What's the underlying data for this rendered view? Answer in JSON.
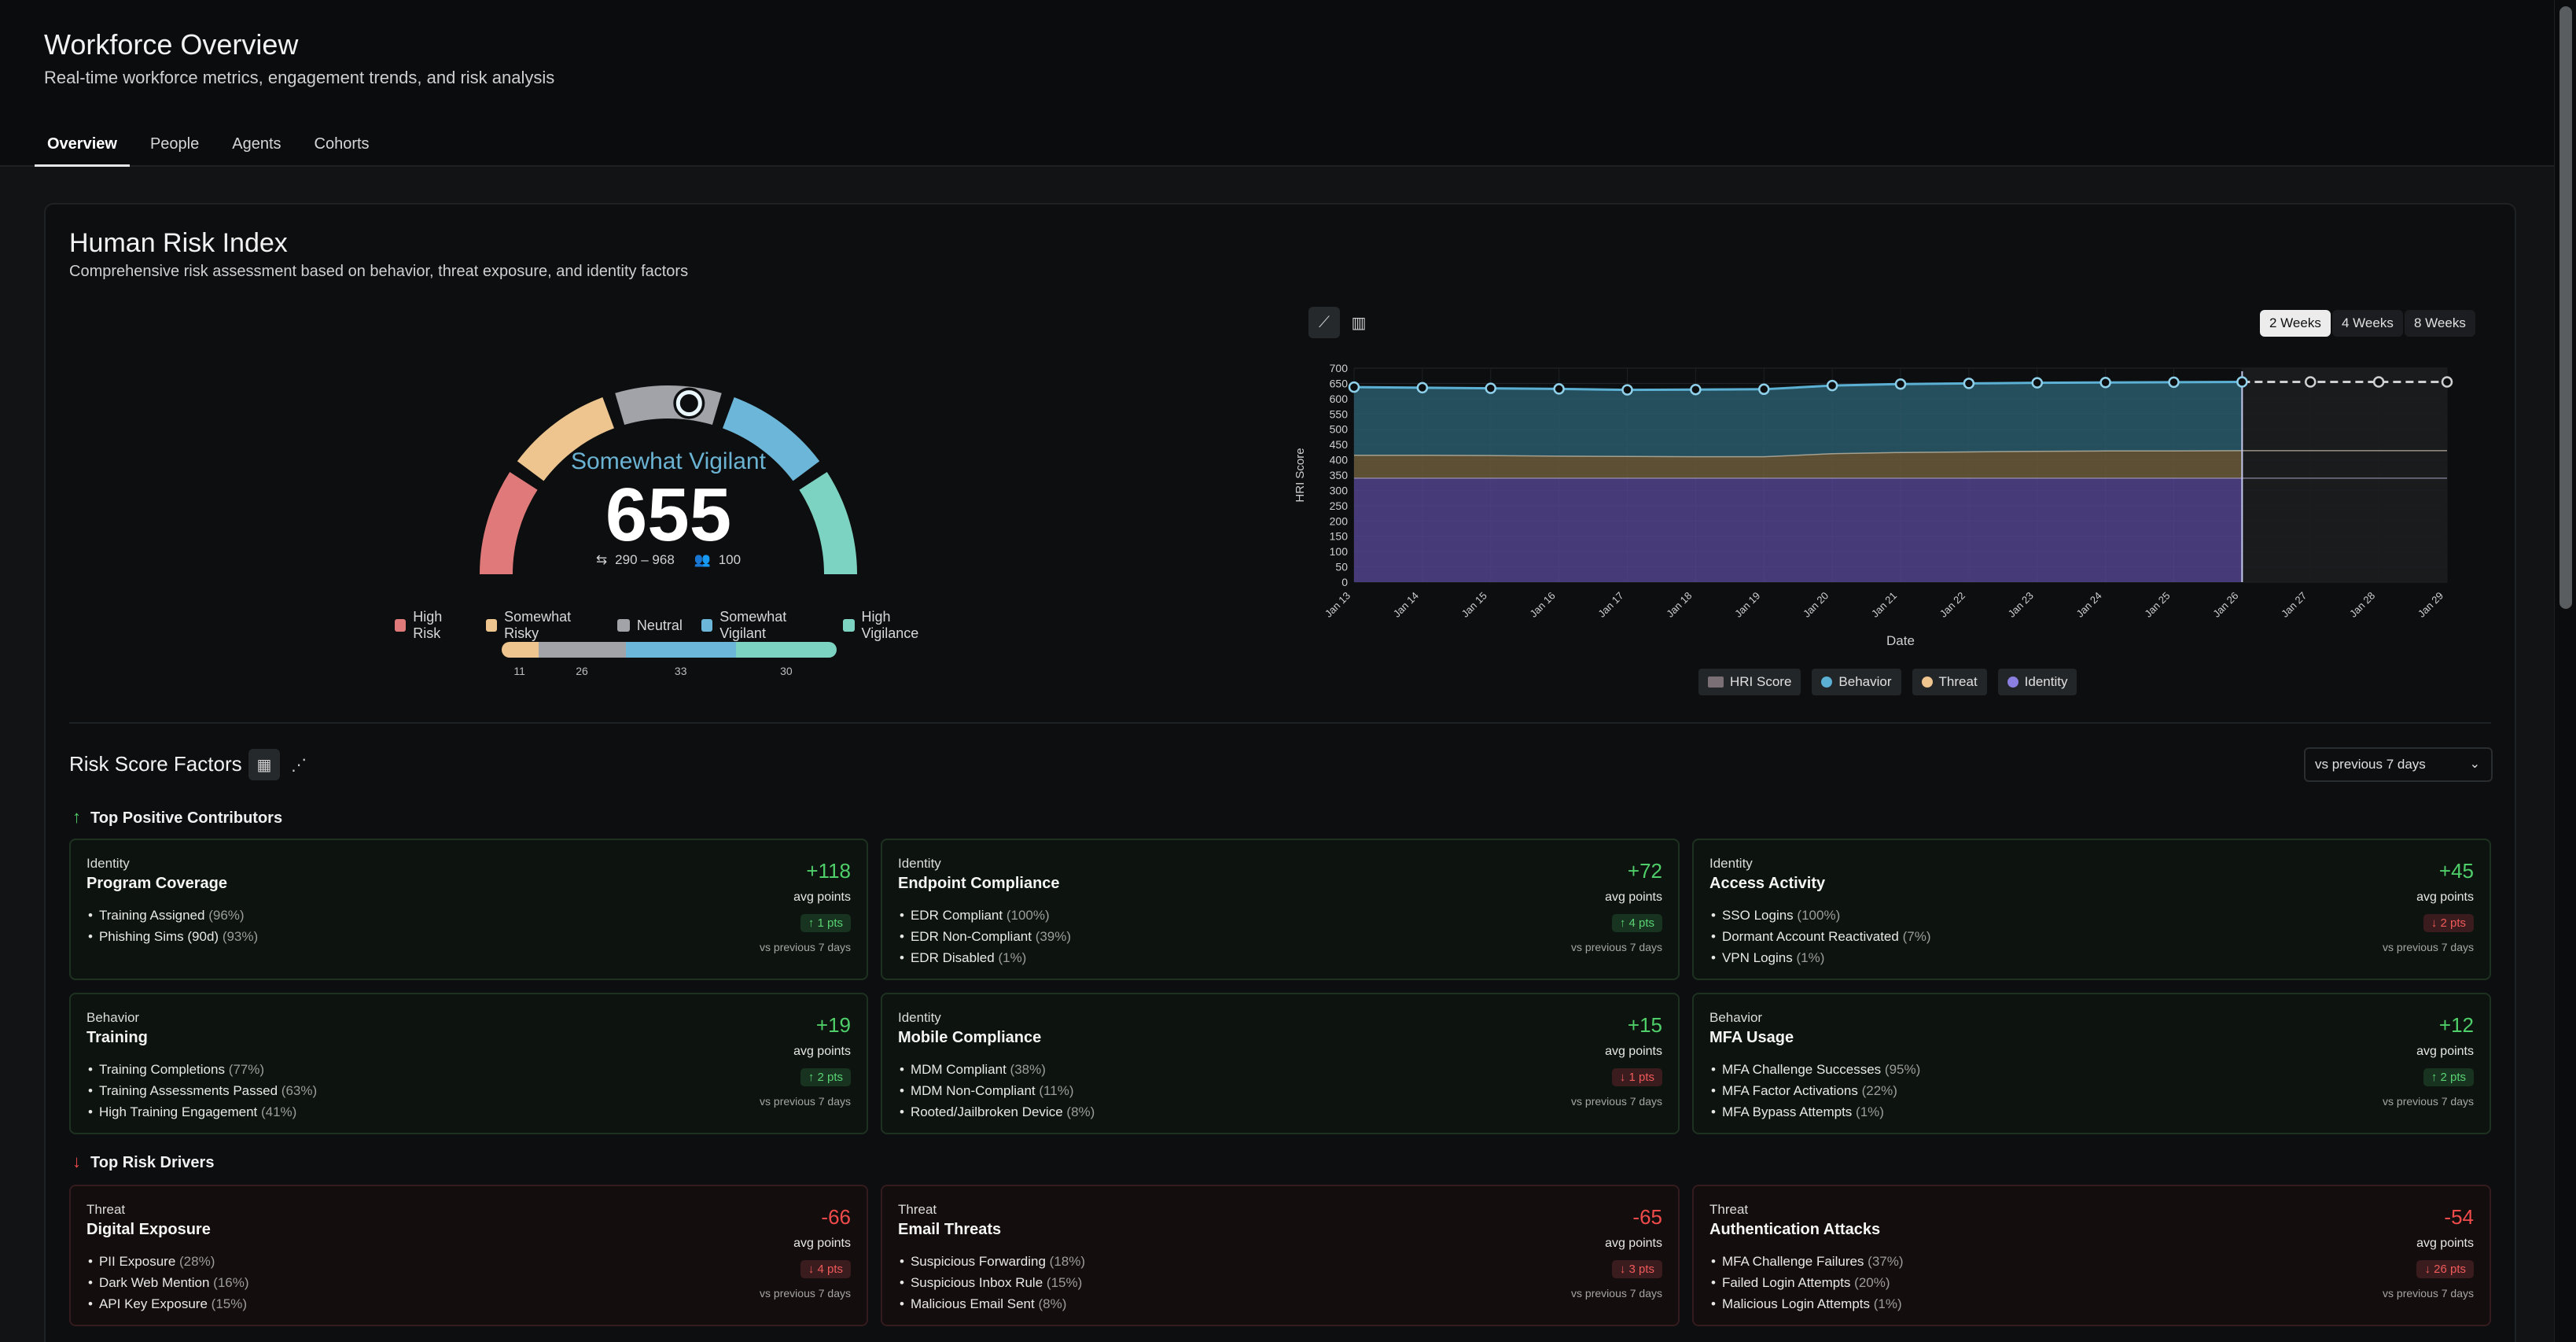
{
  "header": {
    "title": "Workforce Overview",
    "subtitle": "Real-time workforce metrics, engagement trends, and risk analysis",
    "tabs": [
      "Overview",
      "People",
      "Agents",
      "Cohorts"
    ]
  },
  "hri": {
    "title": "Human Risk Index",
    "subtitle": "Comprehensive risk assessment based on behavior, threat exposure, and identity factors",
    "gauge": {
      "state": "Somewhat Vigilant",
      "score": "655",
      "score_value": 655,
      "range_min": 290,
      "range_max": 968,
      "range_text": "290 – 968",
      "people": "100",
      "segments": [
        {
          "name": "High Risk",
          "color": "#e07a7a"
        },
        {
          "name": "Somewhat Risky",
          "color": "#eec58e"
        },
        {
          "name": "Neutral",
          "color": "#a1a3a8"
        },
        {
          "name": "Somewhat Vigilant",
          "color": "#6cb7d9"
        },
        {
          "name": "High Vigilance",
          "color": "#7dd3c1"
        }
      ]
    },
    "distribution": [
      {
        "name": "Somewhat Risky",
        "value": 11,
        "label": "11",
        "color": "#eec58e"
      },
      {
        "name": "Neutral",
        "value": 26,
        "label": "26",
        "color": "#a1a3a8"
      },
      {
        "name": "Somewhat Vigilant",
        "value": 33,
        "label": "33",
        "color": "#6cb7d9"
      },
      {
        "name": "High Vigilance",
        "value": 30,
        "label": "30",
        "color": "#7dd3c1"
      }
    ],
    "ranges": [
      "2 Weeks",
      "4 Weeks",
      "8 Weeks"
    ],
    "active_range": "2 Weeks"
  },
  "chart_data": {
    "type": "area",
    "xlabel": "Date",
    "ylabel": "HRI Score",
    "ylim": [
      0,
      700
    ],
    "yticks": [
      0,
      50,
      100,
      150,
      200,
      250,
      300,
      350,
      400,
      450,
      500,
      550,
      600,
      650,
      700
    ],
    "x": [
      "Jan 13",
      "Jan 14",
      "Jan 15",
      "Jan 16",
      "Jan 17",
      "Jan 18",
      "Jan 19",
      "Jan 20",
      "Jan 21",
      "Jan 22",
      "Jan 23",
      "Jan 24",
      "Jan 25",
      "Jan 26",
      "Jan 27",
      "Jan 28",
      "Jan 29"
    ],
    "forecast_from": "Jan 26",
    "grid": true,
    "legend_position": "bottom",
    "series": [
      {
        "name": "HRI Score",
        "color": "#5bb0d4",
        "values": [
          638,
          636,
          634,
          632,
          629,
          630,
          631,
          643,
          648,
          650,
          652,
          653,
          654,
          655,
          655,
          655,
          655
        ]
      },
      {
        "name": "Behavior",
        "color": "#5bb0d4",
        "values": [
          220,
          220,
          220,
          220,
          220,
          220,
          220,
          220,
          220,
          220,
          220,
          220,
          220,
          220,
          220,
          220,
          220
        ]
      },
      {
        "name": "Threat",
        "color": "#d8b07a",
        "values": [
          75,
          75,
          74,
          72,
          71,
          70,
          70,
          80,
          84,
          86,
          88,
          89,
          89,
          90,
          90,
          90,
          90
        ]
      },
      {
        "name": "Identity",
        "color": "#8b7fe0",
        "values": [
          340,
          340,
          340,
          340,
          340,
          340,
          340,
          340,
          340,
          340,
          340,
          340,
          340,
          340,
          340,
          340,
          340
        ]
      }
    ]
  },
  "factors": {
    "title": "Risk Score Factors",
    "comparison": "vs previous 7 days",
    "positive_title": "Top Positive Contributors",
    "negative_title": "Top Risk Drivers",
    "avg_label": "avg points",
    "vs_label": "vs previous 7 days",
    "positive": [
      {
        "category": "Identity",
        "name": "Program Coverage",
        "value": "+118",
        "delta": "↑ 1 pts",
        "dir": "up",
        "items": [
          {
            "t": "Training Assigned",
            "p": "(96%)"
          },
          {
            "t": "Phishing Sims (90d)",
            "p": "(93%)"
          }
        ]
      },
      {
        "category": "Identity",
        "name": "Endpoint Compliance",
        "value": "+72",
        "delta": "↑ 4 pts",
        "dir": "up",
        "items": [
          {
            "t": "EDR Compliant",
            "p": "(100%)"
          },
          {
            "t": "EDR Non-Compliant",
            "p": "(39%)"
          },
          {
            "t": "EDR Disabled",
            "p": "(1%)"
          }
        ]
      },
      {
        "category": "Identity",
        "name": "Access Activity",
        "value": "+45",
        "delta": "↓ 2 pts",
        "dir": "down",
        "items": [
          {
            "t": "SSO Logins",
            "p": "(100%)"
          },
          {
            "t": "Dormant Account Reactivated",
            "p": "(7%)"
          },
          {
            "t": "VPN Logins",
            "p": "(1%)"
          }
        ]
      },
      {
        "category": "Behavior",
        "name": "Training",
        "value": "+19",
        "delta": "↑ 2 pts",
        "dir": "up",
        "items": [
          {
            "t": "Training Completions",
            "p": "(77%)"
          },
          {
            "t": "Training Assessments Passed",
            "p": "(63%)"
          },
          {
            "t": "High Training Engagement",
            "p": "(41%)"
          }
        ]
      },
      {
        "category": "Identity",
        "name": "Mobile Compliance",
        "value": "+15",
        "delta": "↓ 1 pts",
        "dir": "down",
        "items": [
          {
            "t": "MDM Compliant",
            "p": "(38%)"
          },
          {
            "t": "MDM Non-Compliant",
            "p": "(11%)"
          },
          {
            "t": "Rooted/Jailbroken Device",
            "p": "(8%)"
          }
        ]
      },
      {
        "category": "Behavior",
        "name": "MFA Usage",
        "value": "+12",
        "delta": "↑ 2 pts",
        "dir": "up",
        "items": [
          {
            "t": "MFA Challenge Successes",
            "p": "(95%)"
          },
          {
            "t": "MFA Factor Activations",
            "p": "(22%)"
          },
          {
            "t": "MFA Bypass Attempts",
            "p": "(1%)"
          }
        ]
      }
    ],
    "negative": [
      {
        "category": "Threat",
        "name": "Digital Exposure",
        "value": "-66",
        "delta": "↓ 4 pts",
        "dir": "down",
        "items": [
          {
            "t": "PII Exposure",
            "p": "(28%)"
          },
          {
            "t": "Dark Web Mention",
            "p": "(16%)"
          },
          {
            "t": "API Key Exposure",
            "p": "(15%)"
          }
        ]
      },
      {
        "category": "Threat",
        "name": "Email Threats",
        "value": "-65",
        "delta": "↓ 3 pts",
        "dir": "down",
        "items": [
          {
            "t": "Suspicious Forwarding",
            "p": "(18%)"
          },
          {
            "t": "Suspicious Inbox Rule",
            "p": "(15%)"
          },
          {
            "t": "Malicious Email Sent",
            "p": "(8%)"
          }
        ]
      },
      {
        "category": "Threat",
        "name": "Authentication Attacks",
        "value": "-54",
        "delta": "↓ 26 pts",
        "dir": "down",
        "items": [
          {
            "t": "MFA Challenge Failures",
            "p": "(37%)"
          },
          {
            "t": "Failed Login Attempts",
            "p": "(20%)"
          },
          {
            "t": "Malicious Login Attempts",
            "p": "(1%)"
          }
        ]
      }
    ]
  }
}
